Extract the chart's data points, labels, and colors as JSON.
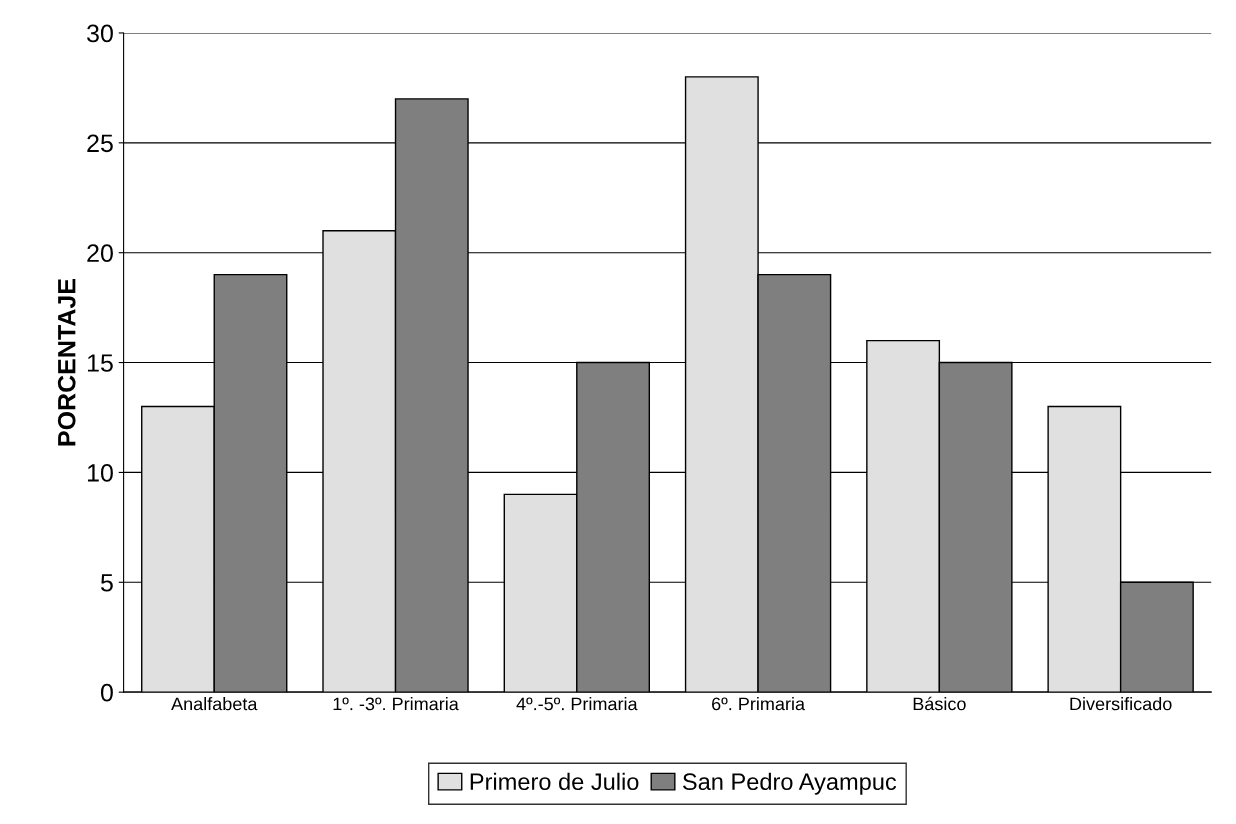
{
  "chart_data": {
    "type": "bar",
    "ylabel": "PORCENTAJE",
    "categories": [
      "Analfabeta",
      "1º. -3º. Primaria",
      "4º.-5º. Primaria",
      "6º. Primaria",
      "Básico",
      "Diversificado"
    ],
    "series": [
      {
        "name": "Primero de Julio",
        "color": "#e0e0e0",
        "values": [
          13,
          21,
          9,
          28,
          16,
          13
        ]
      },
      {
        "name": "San Pedro Ayampuc",
        "color": "#7f7f7f",
        "values": [
          19,
          27,
          15,
          19,
          15,
          5
        ]
      }
    ],
    "ylim": [
      0,
      30
    ],
    "yticks": [
      0,
      5,
      10,
      15,
      20,
      25,
      30
    ],
    "grid": "y",
    "legend": "bottom"
  }
}
